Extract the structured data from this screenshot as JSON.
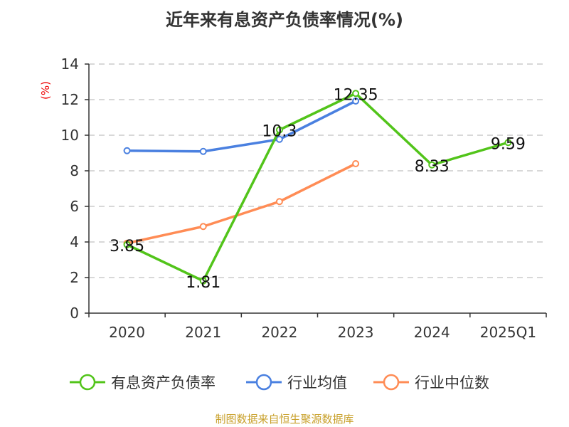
{
  "chart_data": {
    "type": "line",
    "title": "近年来有息资产负债率情况(%)",
    "ylabel": "(%)",
    "categories": [
      "2020",
      "2021",
      "2022",
      "2023",
      "2024",
      "2025Q1"
    ],
    "ylim": [
      0,
      14
    ],
    "yticks": [
      0,
      2,
      4,
      6,
      8,
      10,
      12,
      14
    ],
    "grid": true,
    "legend_position": "bottom",
    "series": [
      {
        "name": "有息资产负债率",
        "color": "#52c41a",
        "values": [
          3.85,
          1.81,
          10.3,
          12.35,
          8.33,
          9.59
        ],
        "labels": [
          "3.85",
          "1.81",
          "10.3",
          "12.35",
          "8.33",
          "9.59"
        ]
      },
      {
        "name": "行业均值",
        "color": "#4a80e0",
        "values": [
          9.13,
          9.09,
          9.77,
          11.92,
          null,
          null
        ]
      },
      {
        "name": "行业中位数",
        "color": "#ff8c55",
        "values": [
          3.93,
          4.87,
          6.27,
          8.4,
          null,
          null
        ]
      }
    ]
  },
  "source": "制图数据来自恒生聚源数据库"
}
